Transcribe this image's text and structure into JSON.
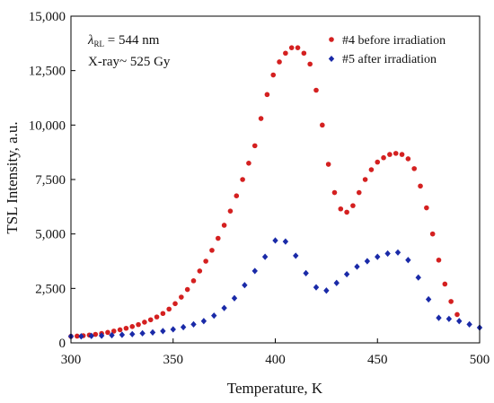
{
  "chart_data": {
    "type": "scatter",
    "xlabel": "Temperature, K",
    "ylabel": "TSL Intensity, a.u.",
    "xlim": [
      300,
      500
    ],
    "ylim": [
      0,
      15000
    ],
    "x_ticks": [
      "300",
      "350",
      "400",
      "450",
      "500"
    ],
    "y_ticks": [
      "0",
      "2,500",
      "5,000",
      "7,500",
      "10,000",
      "12,500",
      "15,000"
    ],
    "x_tick_values": [
      300,
      350,
      400,
      450,
      500
    ],
    "y_tick_values": [
      0,
      2500,
      5000,
      7500,
      10000,
      12500,
      15000
    ],
    "grid": false,
    "legend_position": "top-right",
    "annotations": {
      "lambda_symbol": "λ",
      "lambda_subscript": "RL",
      "lambda_value": " = 544 nm",
      "dose": "X-ray~ 525 Gy"
    },
    "series": [
      {
        "name": "#4 before irradiation",
        "color": "#d42020",
        "marker": "circle",
        "points": [
          [
            300,
            300
          ],
          [
            303,
            310
          ],
          [
            306,
            330
          ],
          [
            309,
            360
          ],
          [
            312,
            390
          ],
          [
            315,
            430
          ],
          [
            318,
            480
          ],
          [
            321,
            540
          ],
          [
            324,
            600
          ],
          [
            327,
            670
          ],
          [
            330,
            750
          ],
          [
            333,
            840
          ],
          [
            336,
            950
          ],
          [
            339,
            1060
          ],
          [
            342,
            1190
          ],
          [
            345,
            1350
          ],
          [
            348,
            1550
          ],
          [
            351,
            1800
          ],
          [
            354,
            2100
          ],
          [
            357,
            2450
          ],
          [
            360,
            2850
          ],
          [
            363,
            3300
          ],
          [
            366,
            3750
          ],
          [
            369,
            4250
          ],
          [
            372,
            4800
          ],
          [
            375,
            5400
          ],
          [
            378,
            6050
          ],
          [
            381,
            6750
          ],
          [
            384,
            7500
          ],
          [
            387,
            8250
          ],
          [
            390,
            9050
          ],
          [
            393,
            10300
          ],
          [
            396,
            11400
          ],
          [
            399,
            12300
          ],
          [
            402,
            12900
          ],
          [
            405,
            13300
          ],
          [
            408,
            13550
          ],
          [
            411,
            13550
          ],
          [
            414,
            13300
          ],
          [
            417,
            12800
          ],
          [
            420,
            11600
          ],
          [
            423,
            10000
          ],
          [
            426,
            8200
          ],
          [
            429,
            6900
          ],
          [
            432,
            6150
          ],
          [
            435,
            6000
          ],
          [
            438,
            6300
          ],
          [
            441,
            6900
          ],
          [
            444,
            7500
          ],
          [
            447,
            7950
          ],
          [
            450,
            8300
          ],
          [
            453,
            8500
          ],
          [
            456,
            8650
          ],
          [
            459,
            8700
          ],
          [
            462,
            8650
          ],
          [
            465,
            8450
          ],
          [
            468,
            8000
          ],
          [
            471,
            7200
          ],
          [
            474,
            6200
          ],
          [
            477,
            5000
          ],
          [
            480,
            3800
          ],
          [
            483,
            2700
          ],
          [
            486,
            1900
          ],
          [
            489,
            1300
          ]
        ]
      },
      {
        "name": "#5 after irradiation",
        "color": "#1a2aa8",
        "marker": "diamond",
        "points": [
          [
            300,
            300
          ],
          [
            305,
            300
          ],
          [
            310,
            320
          ],
          [
            315,
            330
          ],
          [
            320,
            350
          ],
          [
            325,
            370
          ],
          [
            330,
            400
          ],
          [
            335,
            440
          ],
          [
            340,
            480
          ],
          [
            345,
            540
          ],
          [
            350,
            620
          ],
          [
            355,
            720
          ],
          [
            360,
            850
          ],
          [
            365,
            1000
          ],
          [
            370,
            1250
          ],
          [
            375,
            1600
          ],
          [
            380,
            2050
          ],
          [
            385,
            2650
          ],
          [
            390,
            3300
          ],
          [
            395,
            3950
          ],
          [
            400,
            4700
          ],
          [
            405,
            4650
          ],
          [
            410,
            4000
          ],
          [
            415,
            3200
          ],
          [
            420,
            2550
          ],
          [
            425,
            2400
          ],
          [
            430,
            2750
          ],
          [
            435,
            3150
          ],
          [
            440,
            3500
          ],
          [
            445,
            3750
          ],
          [
            450,
            3950
          ],
          [
            455,
            4100
          ],
          [
            460,
            4150
          ],
          [
            465,
            3800
          ],
          [
            470,
            3000
          ],
          [
            475,
            2000
          ],
          [
            480,
            1150
          ],
          [
            485,
            1100
          ],
          [
            490,
            1000
          ],
          [
            495,
            850
          ],
          [
            500,
            700
          ]
        ]
      }
    ]
  }
}
